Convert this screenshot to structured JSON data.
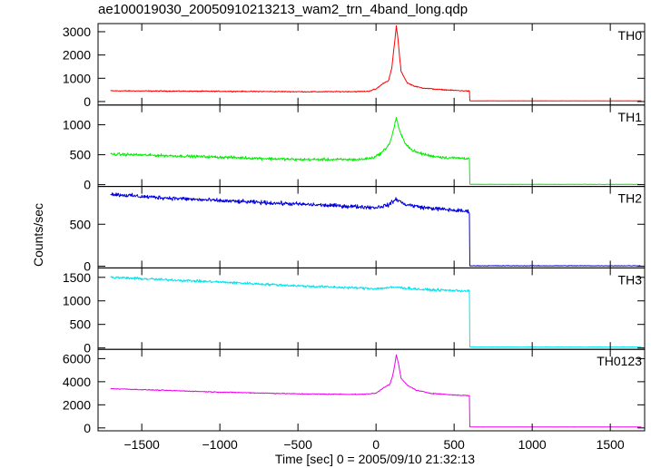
{
  "chart_data": {
    "type": "line",
    "title": "ae100019030_20050910213213_wam2_trn_4band_long.qdp",
    "xlabel": "Time [sec] 0 = 2005/09/10 21:32:13",
    "ylabel": "Counts/sec",
    "xlim": [
      -1780,
      1720
    ],
    "xticks": [
      -1500,
      -1000,
      -500,
      0,
      500,
      1000,
      1500
    ],
    "xtick_labels": [
      "−1500",
      "−1000",
      "−500",
      "0",
      "500",
      "1000",
      "1500"
    ],
    "x_range_data": [
      -1700,
      1700
    ],
    "panels": [
      {
        "name": "TH0",
        "color": "#ff0000",
        "ylim": [
          -150,
          3350
        ],
        "yticks": [
          0,
          1000,
          2000,
          3000
        ],
        "points": [
          [
            -1700,
            460
          ],
          [
            -1000,
            440
          ],
          [
            -400,
            420
          ],
          [
            -100,
            430
          ],
          [
            -50,
            440
          ],
          [
            0,
            540
          ],
          [
            50,
            800
          ],
          [
            80,
            900
          ],
          [
            100,
            1400
          ],
          [
            120,
            2600
          ],
          [
            130,
            3250
          ],
          [
            140,
            2700
          ],
          [
            160,
            1300
          ],
          [
            200,
            800
          ],
          [
            250,
            650
          ],
          [
            300,
            580
          ],
          [
            400,
            520
          ],
          [
            500,
            480
          ],
          [
            598,
            450
          ],
          [
            600,
            30
          ],
          [
            1700,
            30
          ]
        ],
        "noise": 30
      },
      {
        "name": "TH1",
        "color": "#00ee00",
        "ylim": [
          -30,
          1330
        ],
        "yticks": [
          0,
          500,
          1000
        ],
        "points": [
          [
            -1700,
            510
          ],
          [
            -1000,
            460
          ],
          [
            -500,
            420
          ],
          [
            -100,
            420
          ],
          [
            -20,
            450
          ],
          [
            30,
            520
          ],
          [
            60,
            600
          ],
          [
            90,
            700
          ],
          [
            110,
            900
          ],
          [
            130,
            1120
          ],
          [
            150,
            900
          ],
          [
            180,
            720
          ],
          [
            220,
            600
          ],
          [
            260,
            540
          ],
          [
            350,
            480
          ],
          [
            450,
            450
          ],
          [
            598,
            440
          ],
          [
            600,
            5
          ],
          [
            1700,
            5
          ]
        ],
        "noise": 35
      },
      {
        "name": "TH2",
        "color": "#0000dd",
        "ylim": [
          -20,
          950
        ],
        "yticks": [
          0,
          500
        ],
        "points": [
          [
            -1700,
            860
          ],
          [
            -1500,
            830
          ],
          [
            -1000,
            780
          ],
          [
            -500,
            740
          ],
          [
            0,
            700
          ],
          [
            80,
            730
          ],
          [
            130,
            800
          ],
          [
            180,
            740
          ],
          [
            300,
            700
          ],
          [
            598,
            650
          ],
          [
            600,
            5
          ],
          [
            1700,
            5
          ]
        ],
        "noise": 35
      },
      {
        "name": "TH3",
        "color": "#00e5ee",
        "ylim": [
          -30,
          1700
        ],
        "yticks": [
          0,
          500,
          1000,
          1500
        ],
        "points": [
          [
            -1700,
            1500
          ],
          [
            -1000,
            1400
          ],
          [
            -500,
            1320
          ],
          [
            0,
            1260
          ],
          [
            130,
            1290
          ],
          [
            300,
            1240
          ],
          [
            598,
            1210
          ],
          [
            600,
            20
          ],
          [
            1700,
            20
          ]
        ],
        "noise": 40
      },
      {
        "name": "TH0123",
        "color": "#ee00ee",
        "ylim": [
          -250,
          6800
        ],
        "yticks": [
          0,
          2000,
          4000,
          6000
        ],
        "points": [
          [
            -1700,
            3400
          ],
          [
            -1000,
            3100
          ],
          [
            -500,
            2950
          ],
          [
            -100,
            2900
          ],
          [
            0,
            3000
          ],
          [
            50,
            3500
          ],
          [
            90,
            3800
          ],
          [
            110,
            4700
          ],
          [
            130,
            6300
          ],
          [
            145,
            5500
          ],
          [
            160,
            4300
          ],
          [
            200,
            3700
          ],
          [
            260,
            3250
          ],
          [
            350,
            3000
          ],
          [
            500,
            2850
          ],
          [
            598,
            2800
          ],
          [
            600,
            80
          ],
          [
            1700,
            80
          ]
        ],
        "noise": 55
      }
    ]
  }
}
